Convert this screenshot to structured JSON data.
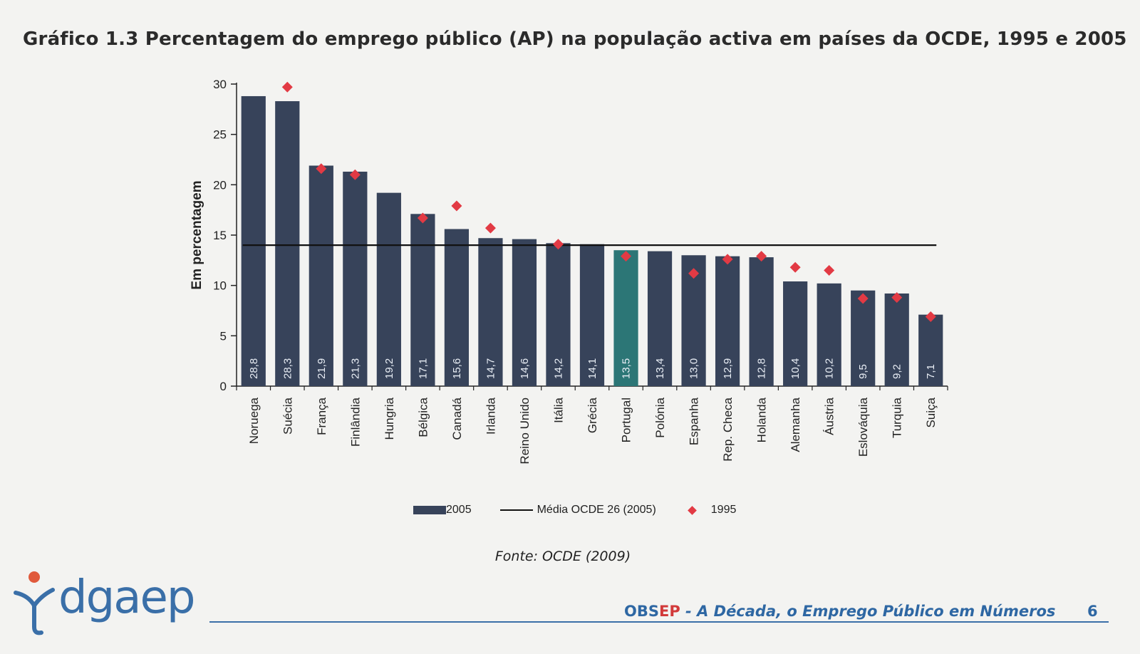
{
  "title": "Gráfico 1.3 Percentagem do emprego público (AP) na população activa em países da OCDE, 1995 e 2005",
  "source": "Fonte: OCDE (2009)",
  "chart_data": {
    "type": "bar",
    "title": "Gráfico 1.3 Percentagem do emprego público (AP) na população activa em países da OCDE, 1995 e 2005",
    "xlabel": "",
    "ylabel": "Em percentagem",
    "ylim": [
      0,
      30
    ],
    "yticks": [
      "0",
      "5",
      "10",
      "15",
      "20",
      "25",
      "30"
    ],
    "categories": [
      "Noruega",
      "Suécia",
      "França",
      "Finlândia",
      "Hungria",
      "Bélgica",
      "Canadá",
      "Irlanda",
      "Reino Unido",
      "Itália",
      "Grécia",
      "Portugal",
      "Polónia",
      "Espanha",
      "Rep. Checa",
      "Holanda",
      "Alemanha",
      "Áustria",
      "Eslováquia",
      "Turquia",
      "Suiça"
    ],
    "series": [
      {
        "name": "2005",
        "type": "bar",
        "color": "#37435a",
        "highlight": {
          "category": "Portugal",
          "color": "#2c7676"
        },
        "values": [
          28.8,
          28.3,
          21.9,
          21.3,
          19.2,
          17.1,
          15.6,
          14.7,
          14.6,
          14.2,
          14.1,
          13.5,
          13.4,
          13.0,
          12.9,
          12.8,
          10.4,
          10.2,
          9.5,
          9.2,
          7.1
        ],
        "labels": [
          "28,8",
          "28,3",
          "21,9",
          "21,3",
          "19,2",
          "17,1",
          "15,6",
          "14,7",
          "14,6",
          "14,2",
          "14,1",
          "13,5",
          "13,4",
          "13,0",
          "12,9",
          "12,8",
          "10,4",
          "10,2",
          "9,5",
          "9,2",
          "7,1"
        ]
      },
      {
        "name": "1995",
        "type": "scatter",
        "marker": "diamond",
        "color": "#e23a44",
        "values": [
          null,
          29.7,
          21.6,
          21.0,
          null,
          16.7,
          17.9,
          15.7,
          null,
          14.1,
          null,
          12.9,
          null,
          11.2,
          12.6,
          12.9,
          11.8,
          11.5,
          8.7,
          8.8,
          6.9
        ]
      },
      {
        "name": "Média OCDE 26 (2005)",
        "type": "line",
        "color": "#111111",
        "value": 14.0
      }
    ],
    "legend": {
      "position": "bottom",
      "items": [
        "2005",
        "Média OCDE 26 (2005)",
        "1995"
      ]
    }
  },
  "footer": {
    "logo": "dgaep",
    "obs": "OBS",
    "ep": "EP",
    "rest": " - A Década, o Emprego Público em Números",
    "page": "6"
  },
  "colors": {
    "bar": "#37435a",
    "highlight": "#2c7676",
    "marker": "#e23a44",
    "accent": "#3a6fa8"
  }
}
